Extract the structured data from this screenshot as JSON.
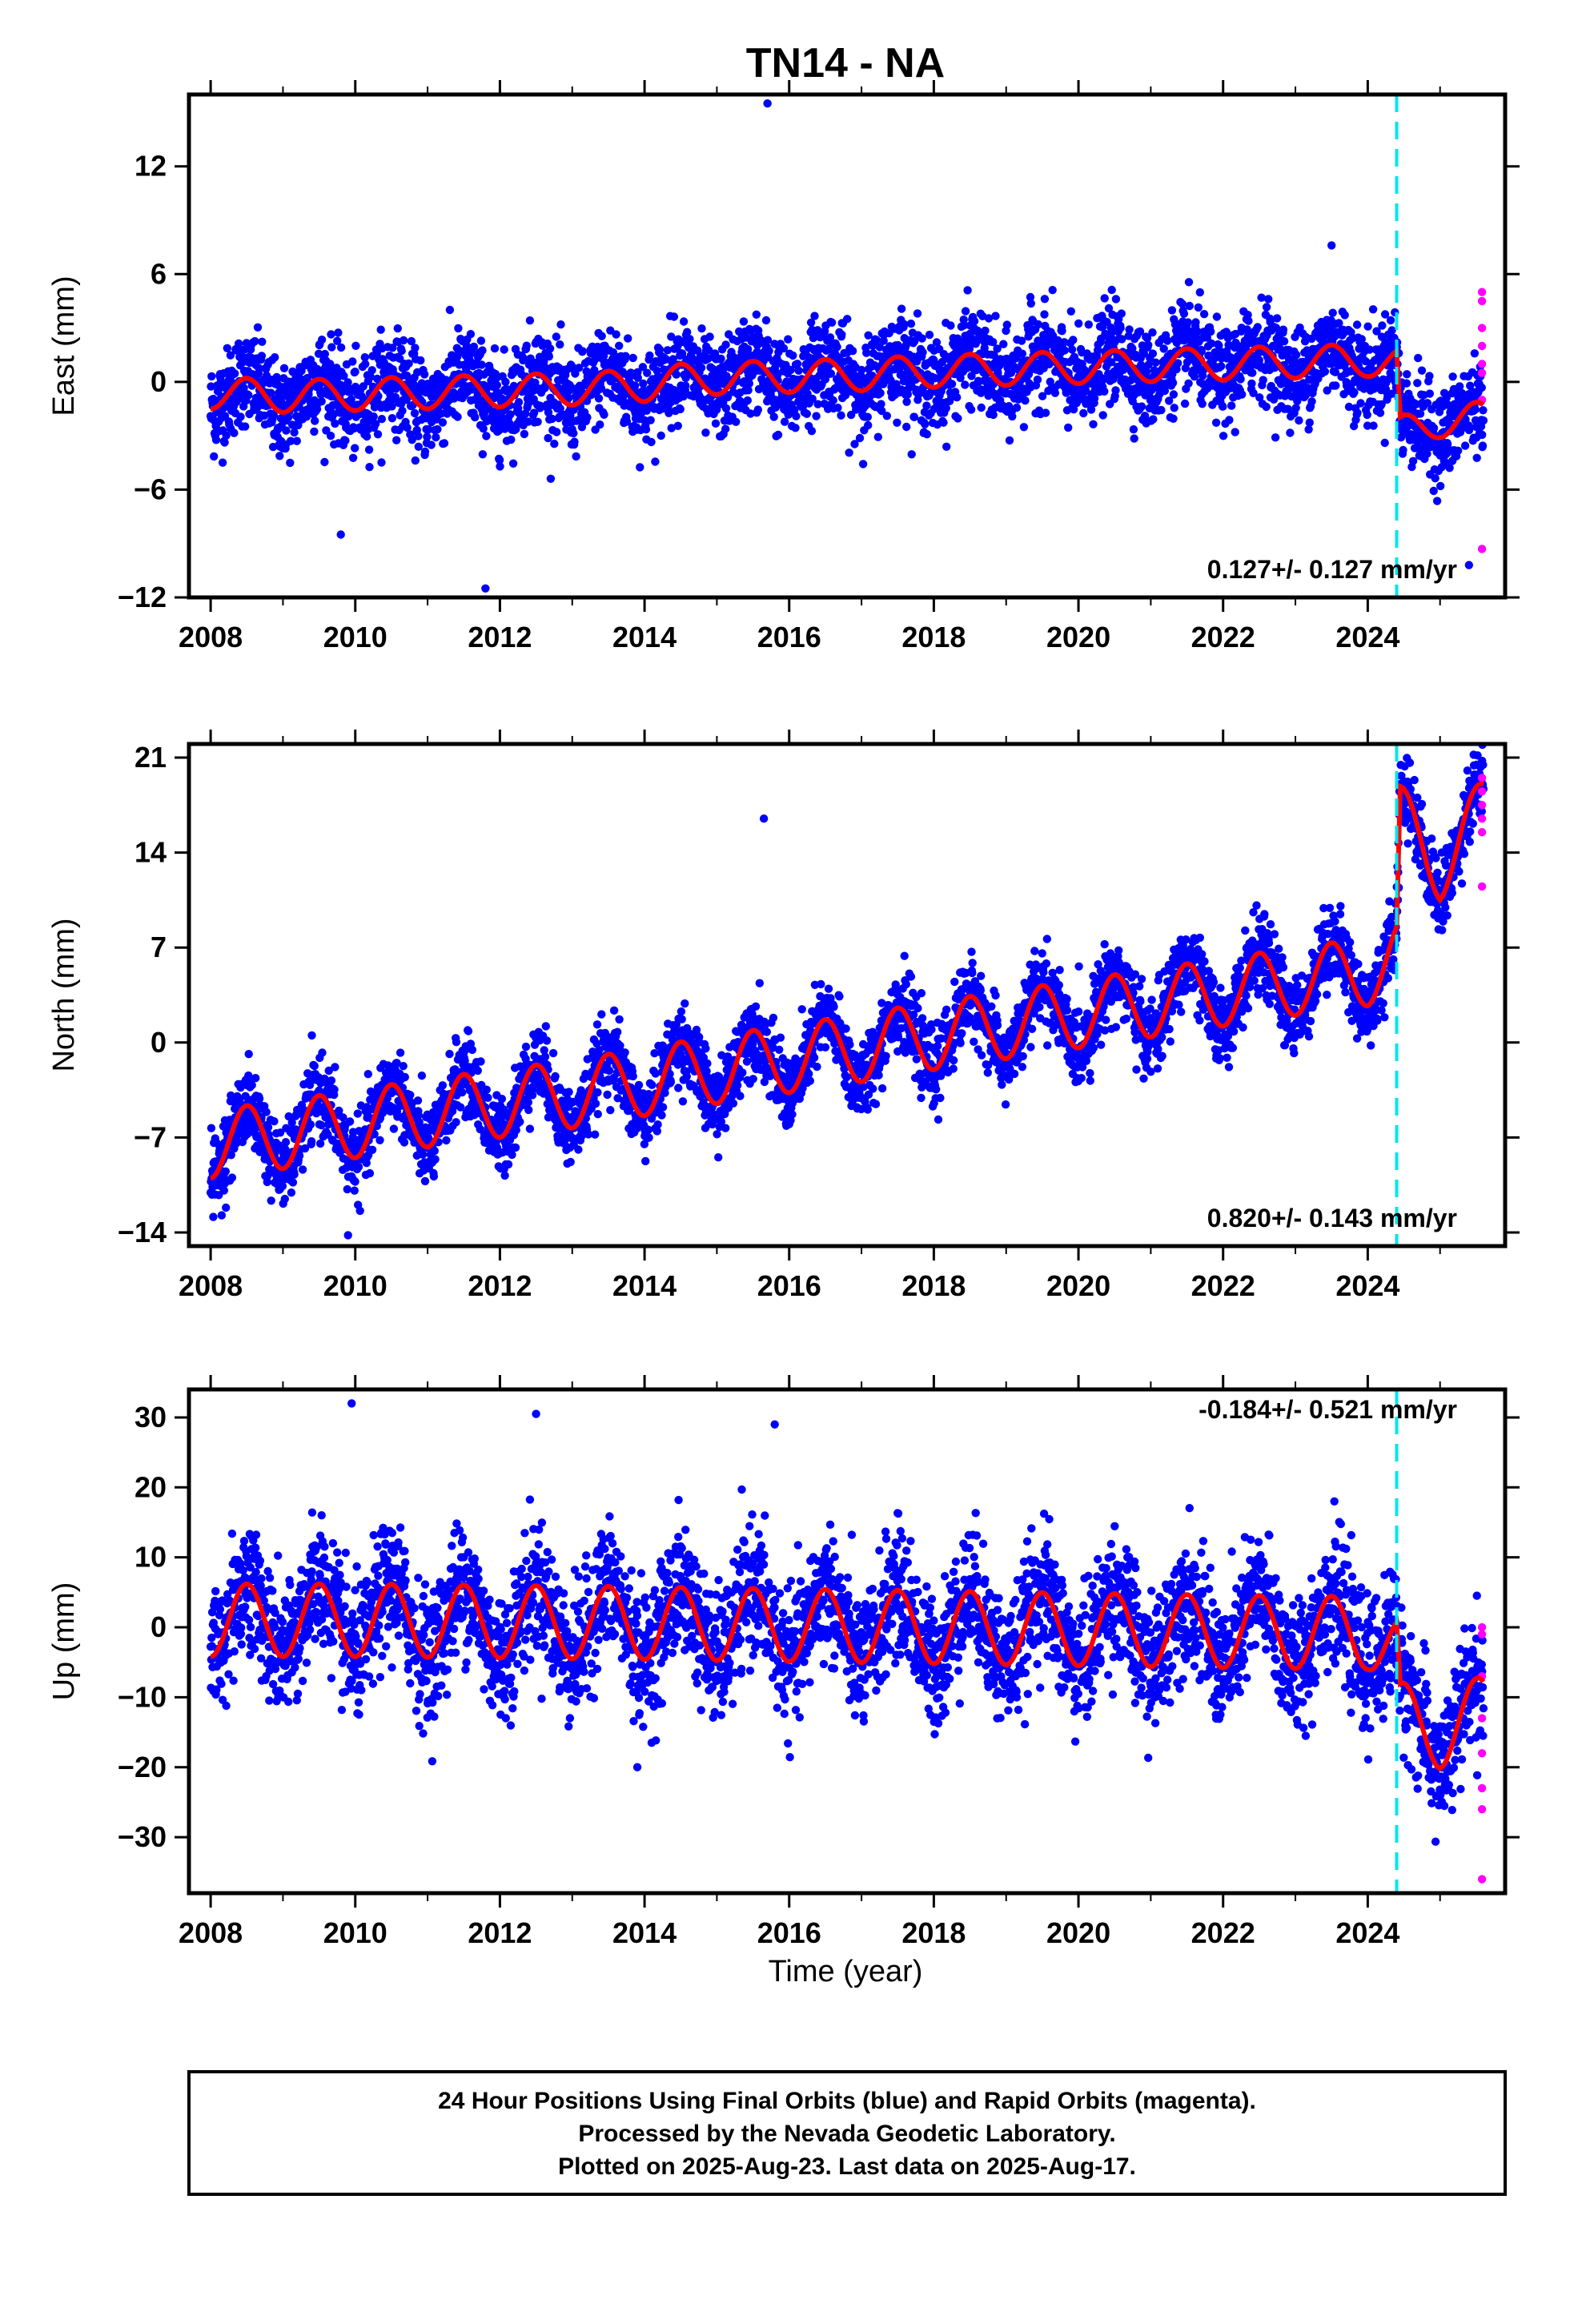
{
  "title": "TN14 - NA",
  "x_axis_label": "Time (year)",
  "x_ticks": [
    2008,
    2010,
    2012,
    2014,
    2016,
    2018,
    2020,
    2022,
    2024
  ],
  "footer": {
    "line1": "24 Hour Positions Using Final Orbits (blue) and Rapid Orbits (magenta).",
    "line2": "Processed by the Nevada Geodetic Laboratory.",
    "line3": "Plotted on 2025-Aug-23. Last data on 2025-Aug-17."
  },
  "colors": {
    "final_orbits": "#0000ff",
    "rapid_orbits": "#ff00ff",
    "model_fit": "#ff0000",
    "equipment_change": "#00e5ee"
  },
  "chart_data": [
    {
      "type": "scatter",
      "component": "east",
      "ylabel": "East (mm)",
      "xlim": [
        2007.7,
        2025.9
      ],
      "ylim": [
        -12,
        16
      ],
      "yticks": [
        -12,
        -6,
        0,
        6,
        12
      ],
      "rate_text": "0.127+/- 0.127 mm/yr",
      "equipment_change_year": 2024.4,
      "fit": {
        "x": [
          2008.0,
          2009.0,
          2010.0,
          2011.0,
          2012.0,
          2013.0,
          2014.0,
          2014.5,
          2015.0,
          2016.0,
          2017.0,
          2018.0,
          2019.0,
          2020.0,
          2021.0,
          2022.0,
          2023.0,
          2024.0,
          2024.4,
          2024.45,
          2025.0,
          2025.6
        ],
        "y": [
          -0.6,
          -0.8,
          -0.7,
          -0.6,
          -0.5,
          -0.4,
          -0.2,
          0.1,
          0.2,
          0.3,
          0.4,
          0.6,
          0.7,
          0.8,
          0.9,
          1.0,
          1.1,
          1.2,
          1.0,
          -2.8,
          -2.2,
          -2.0
        ]
      },
      "seasonal_amplitude": 0.9,
      "rapid_points": [
        5.0,
        4.5,
        3.0,
        2.0,
        1.0,
        0.5,
        -1.0,
        -9.3
      ],
      "outliers": [
        {
          "x": 2015.7,
          "y": 15.5
        },
        {
          "x": 2011.8,
          "y": -11.5
        },
        {
          "x": 2023.5,
          "y": 7.6
        },
        {
          "x": 2009.8,
          "y": -8.5
        },
        {
          "x": 2025.4,
          "y": -10.2
        }
      ]
    },
    {
      "type": "scatter",
      "component": "north",
      "ylabel": "North (mm)",
      "xlim": [
        2007.7,
        2025.9
      ],
      "ylim": [
        -15,
        22
      ],
      "yticks": [
        -14,
        -7,
        0,
        7,
        14,
        21
      ],
      "rate_text": "0.820+/- 0.143 mm/yr",
      "equipment_change_year": 2024.4,
      "fit": {
        "x": [
          2008.0,
          2009.0,
          2010.0,
          2011.0,
          2012.0,
          2013.0,
          2014.0,
          2015.0,
          2016.0,
          2017.0,
          2018.0,
          2019.0,
          2020.0,
          2021.0,
          2022.0,
          2023.0,
          2024.0,
          2024.4,
          2024.45,
          2025.0,
          2025.6
        ],
        "y": [
          -7.5,
          -6.8,
          -6.0,
          -5.2,
          -4.5,
          -3.8,
          -2.9,
          -2.0,
          -1.2,
          -0.4,
          0.5,
          1.3,
          2.1,
          2.9,
          3.7,
          4.5,
          5.2,
          6.5,
          16.5,
          13.0,
          17.0
        ]
      },
      "seasonal_amplitude": 2.5,
      "rapid_points": [
        19.5,
        18.5,
        17.5,
        16.5,
        15.5,
        11.5
      ],
      "outliers": [
        {
          "x": 2015.65,
          "y": 16.5
        },
        {
          "x": 2009.9,
          "y": -14.2
        }
      ]
    },
    {
      "type": "scatter",
      "component": "up",
      "ylabel": "Up (mm)",
      "xlim": [
        2007.7,
        2025.9
      ],
      "ylim": [
        -38,
        34
      ],
      "yticks": [
        -30,
        -20,
        -10,
        0,
        10,
        20,
        30
      ],
      "rate_text": "-0.184+/- 0.521 mm/yr",
      "equipment_change_year": 2024.4,
      "fit": {
        "x": [
          2008.0,
          2010.0,
          2012.0,
          2014.0,
          2016.0,
          2018.0,
          2020.0,
          2022.0,
          2024.0,
          2024.4,
          2024.45,
          2025.0,
          2025.6
        ],
        "y": [
          1.0,
          1.0,
          0.8,
          0.6,
          0.3,
          0.0,
          -0.3,
          -0.6,
          -0.8,
          -3.5,
          -13.0,
          -15.0,
          -12.0
        ]
      },
      "seasonal_amplitude": 5.2,
      "rapid_points": [
        0.0,
        -1.0,
        -7.0,
        -13.0,
        -18.0,
        -23.0,
        -26.0,
        -36.0
      ],
      "outliers": [
        {
          "x": 2009.95,
          "y": 32.0
        },
        {
          "x": 2012.5,
          "y": 30.5
        },
        {
          "x": 2015.8,
          "y": 29.0
        },
        {
          "x": 2013.9,
          "y": -20.0
        }
      ]
    }
  ]
}
